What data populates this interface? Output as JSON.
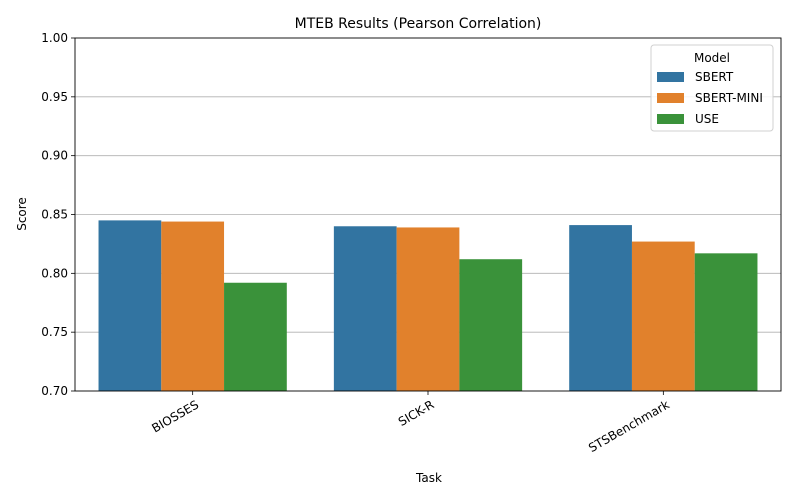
{
  "chart_data": {
    "type": "bar",
    "title": "MTEB Results (Pearson Correlation)",
    "xlabel": "Task",
    "ylabel": "Score",
    "categories": [
      "BIOSSES",
      "SICK-R",
      "STSBenchmark"
    ],
    "ylim": [
      0.7,
      1.0
    ],
    "yticks": [
      "0.70",
      "0.75",
      "0.80",
      "0.85",
      "0.90",
      "0.95",
      "1.00"
    ],
    "grid": "y",
    "legend": {
      "title": "Model",
      "position": "top-right"
    },
    "series": [
      {
        "name": "SBERT",
        "color": "#3274a1",
        "values": [
          0.845,
          0.84,
          0.841
        ]
      },
      {
        "name": "SBERT-MINI",
        "color": "#e1812c",
        "values": [
          0.844,
          0.839,
          0.827
        ]
      },
      {
        "name": "USE",
        "color": "#3a923a",
        "values": [
          0.792,
          0.812,
          0.817
        ]
      }
    ]
  }
}
